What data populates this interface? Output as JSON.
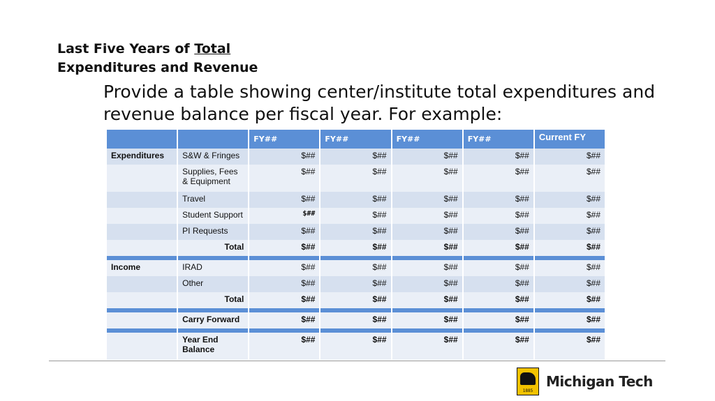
{
  "title": {
    "line1_prefix": "Last Five Years of ",
    "line1_underlined": "Total",
    "line2": "Expenditures and Revenue"
  },
  "subtitle": "Provide a table showing center/institute total expenditures and revenue balance per fiscal year. For example:",
  "table": {
    "headers": [
      "",
      "",
      "FY##",
      "FY##",
      "FY##",
      "FY##",
      "Current FY"
    ],
    "rows": [
      {
        "cat": "Expenditures",
        "label": "S&W & Fringes",
        "values": [
          "$##",
          "$##",
          "$##",
          "$##",
          "$##"
        ]
      },
      {
        "cat": "",
        "label": "Supplies, Fees & Equipment",
        "values": [
          "$##",
          "$##",
          "$##",
          "$##",
          "$##"
        ]
      },
      {
        "cat": "",
        "label": "Travel",
        "values": [
          "$##",
          "$##",
          "$##",
          "$##",
          "$##"
        ]
      },
      {
        "cat": "",
        "label": "Student Support",
        "values": [
          "$##",
          "$##",
          "$##",
          "$##",
          "$##"
        ]
      },
      {
        "cat": "",
        "label": "PI Requests",
        "values": [
          "$##",
          "$##",
          "$##",
          "$##",
          "$##"
        ]
      },
      {
        "cat": "",
        "label": "Total",
        "values": [
          "$##",
          "$##",
          "$##",
          "$##",
          "$##"
        ]
      },
      {
        "cat": "Income",
        "label": "IRAD",
        "values": [
          "$##",
          "$##",
          "$##",
          "$##",
          "$##"
        ]
      },
      {
        "cat": "",
        "label": "Other",
        "values": [
          "$##",
          "$##",
          "$##",
          "$##",
          "$##"
        ]
      },
      {
        "cat": "",
        "label": "Total",
        "values": [
          "$##",
          "$##",
          "$##",
          "$##",
          "$##"
        ]
      },
      {
        "cat": "",
        "label": "Carry Forward",
        "values": [
          "$##",
          "$##",
          "$##",
          "$##",
          "$##"
        ]
      },
      {
        "cat": "",
        "label": "Year End Balance",
        "values": [
          "$##",
          "$##",
          "$##",
          "$##",
          "$##"
        ]
      }
    ]
  },
  "logo": {
    "text": "Michigan Tech",
    "year": "1885",
    "color": "#f2c200"
  },
  "colors": {
    "header": "#5b8fd6",
    "row_dark": "#d6e0ef",
    "row_light": "#eaeff7"
  }
}
